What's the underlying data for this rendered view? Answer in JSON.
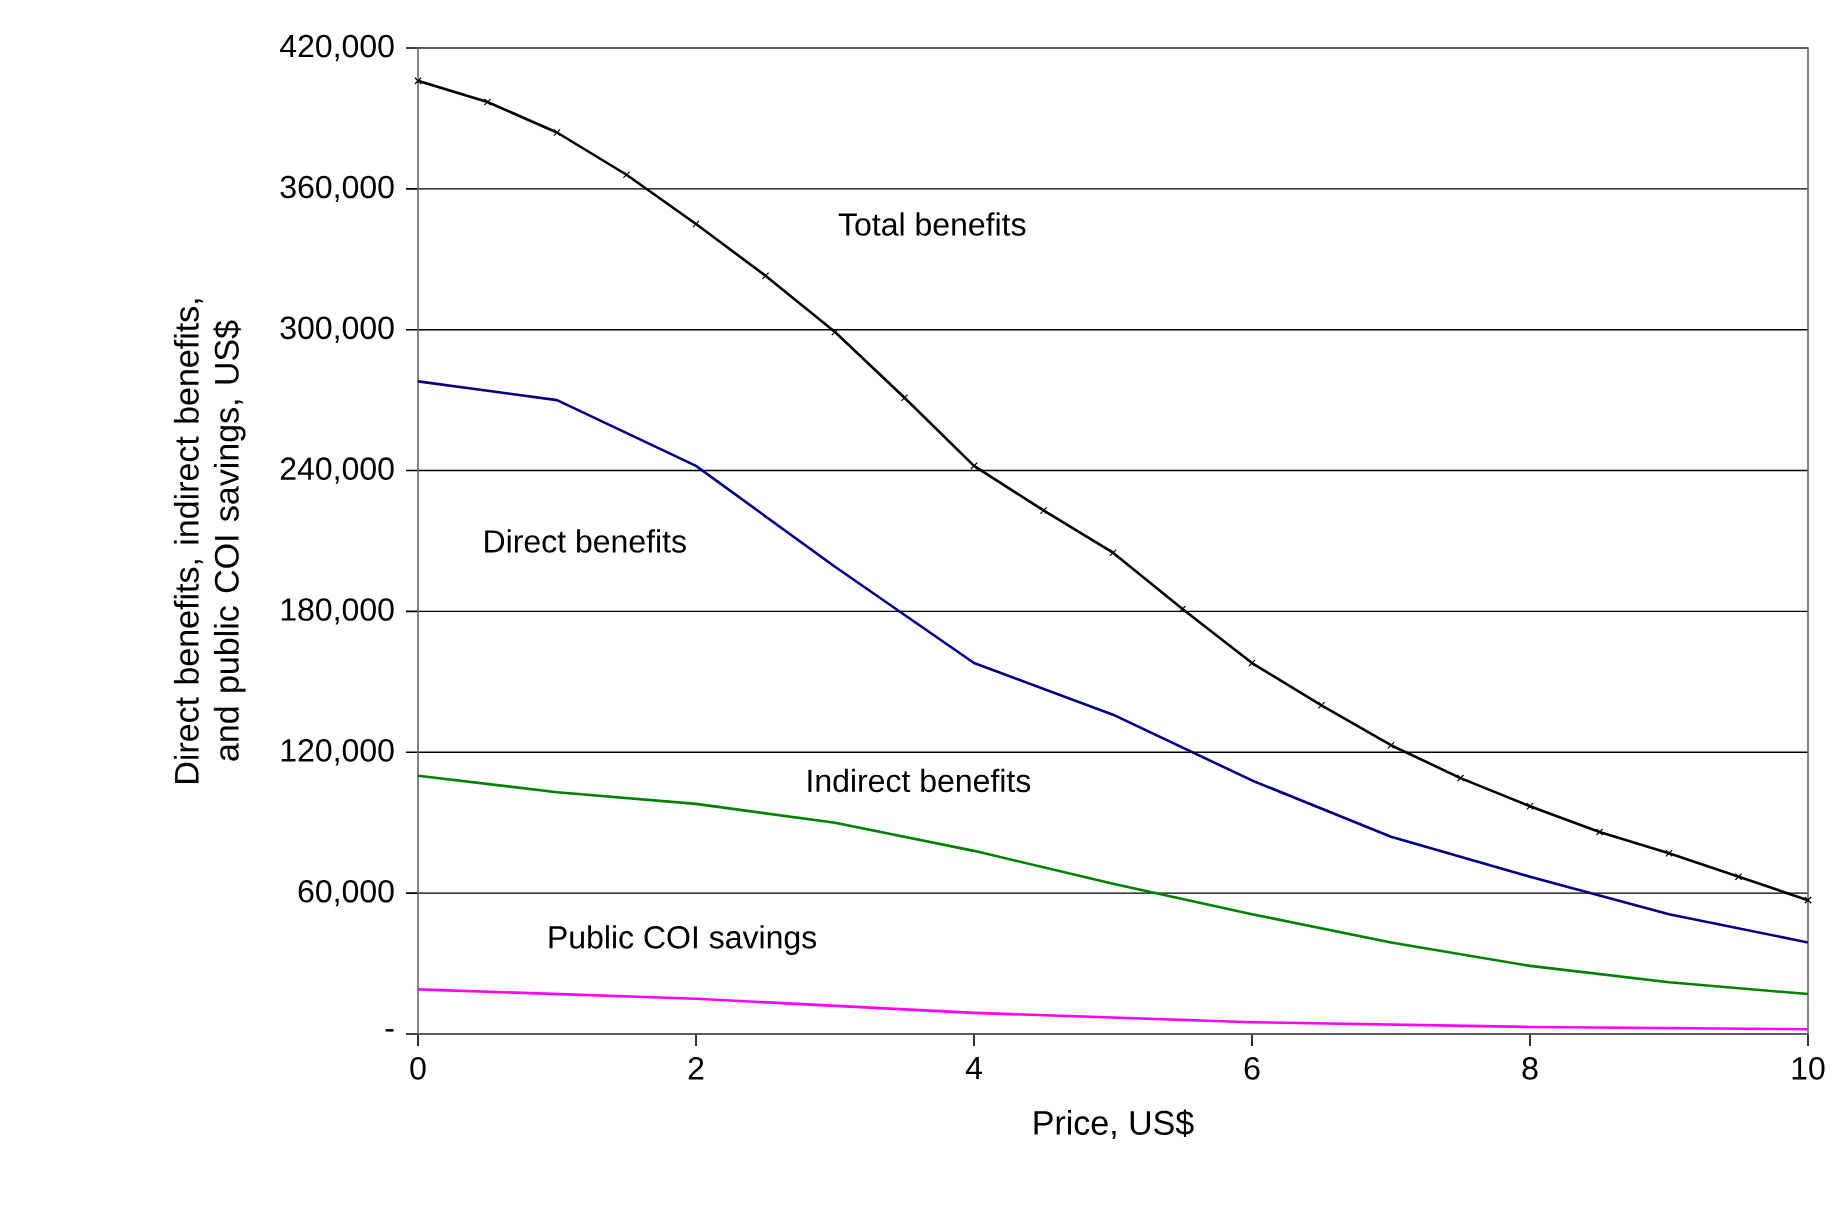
{
  "chart_data": {
    "type": "line",
    "xlabel": "Price, US$",
    "ylabel": "Direct benefits, indirect benefits, and public COI savings, US$",
    "xlim": [
      0,
      10
    ],
    "xticks": [
      0,
      2,
      4,
      6,
      8,
      10
    ],
    "ylim": [
      0,
      420000
    ],
    "yticks": [
      {
        "value": 0,
        "label": "-"
      },
      {
        "value": 60000,
        "label": "60,000"
      },
      {
        "value": 120000,
        "label": "120,000"
      },
      {
        "value": 180000,
        "label": "180,000"
      },
      {
        "value": 240000,
        "label": "240,000"
      },
      {
        "value": 300000,
        "label": "300,000"
      },
      {
        "value": 360000,
        "label": "360,000"
      },
      {
        "value": 420000,
        "label": "420,000"
      }
    ],
    "grid": "y",
    "legend": false,
    "series": [
      {
        "name": "Total benefits",
        "color": "#000000",
        "marker": "cross",
        "x": [
          0,
          0.5,
          1,
          1.5,
          2,
          2.5,
          3,
          3.5,
          4,
          4.5,
          5,
          5.5,
          6,
          6.5,
          7,
          7.5,
          8,
          8.5,
          9,
          9.5,
          10
        ],
        "values": [
          406000,
          397000,
          384000,
          366000,
          345000,
          323000,
          299000,
          271000,
          242000,
          223000,
          205000,
          181000,
          158000,
          140000,
          123000,
          109000,
          97000,
          86000,
          77000,
          67000,
          57000
        ]
      },
      {
        "name": "Direct benefits",
        "color": "#000080",
        "x": [
          0,
          1,
          2,
          3,
          4,
          5,
          6,
          7,
          8,
          9,
          10
        ],
        "values": [
          278000,
          270000,
          242000,
          199000,
          158000,
          136000,
          108000,
          84000,
          67000,
          51000,
          39000
        ]
      },
      {
        "name": "Indirect benefits",
        "color": "#008000",
        "x": [
          0,
          1,
          2,
          3,
          4,
          5,
          6,
          7,
          8,
          9,
          10
        ],
        "values": [
          110000,
          103000,
          98000,
          90000,
          78000,
          64000,
          51000,
          39000,
          29000,
          22000,
          17000
        ]
      },
      {
        "name": "Public COI savings",
        "color": "#ff00ff",
        "x": [
          0,
          2,
          4,
          6,
          8,
          10
        ],
        "values": [
          19000,
          15000,
          9000,
          5000,
          3000,
          2000
        ]
      }
    ]
  }
}
